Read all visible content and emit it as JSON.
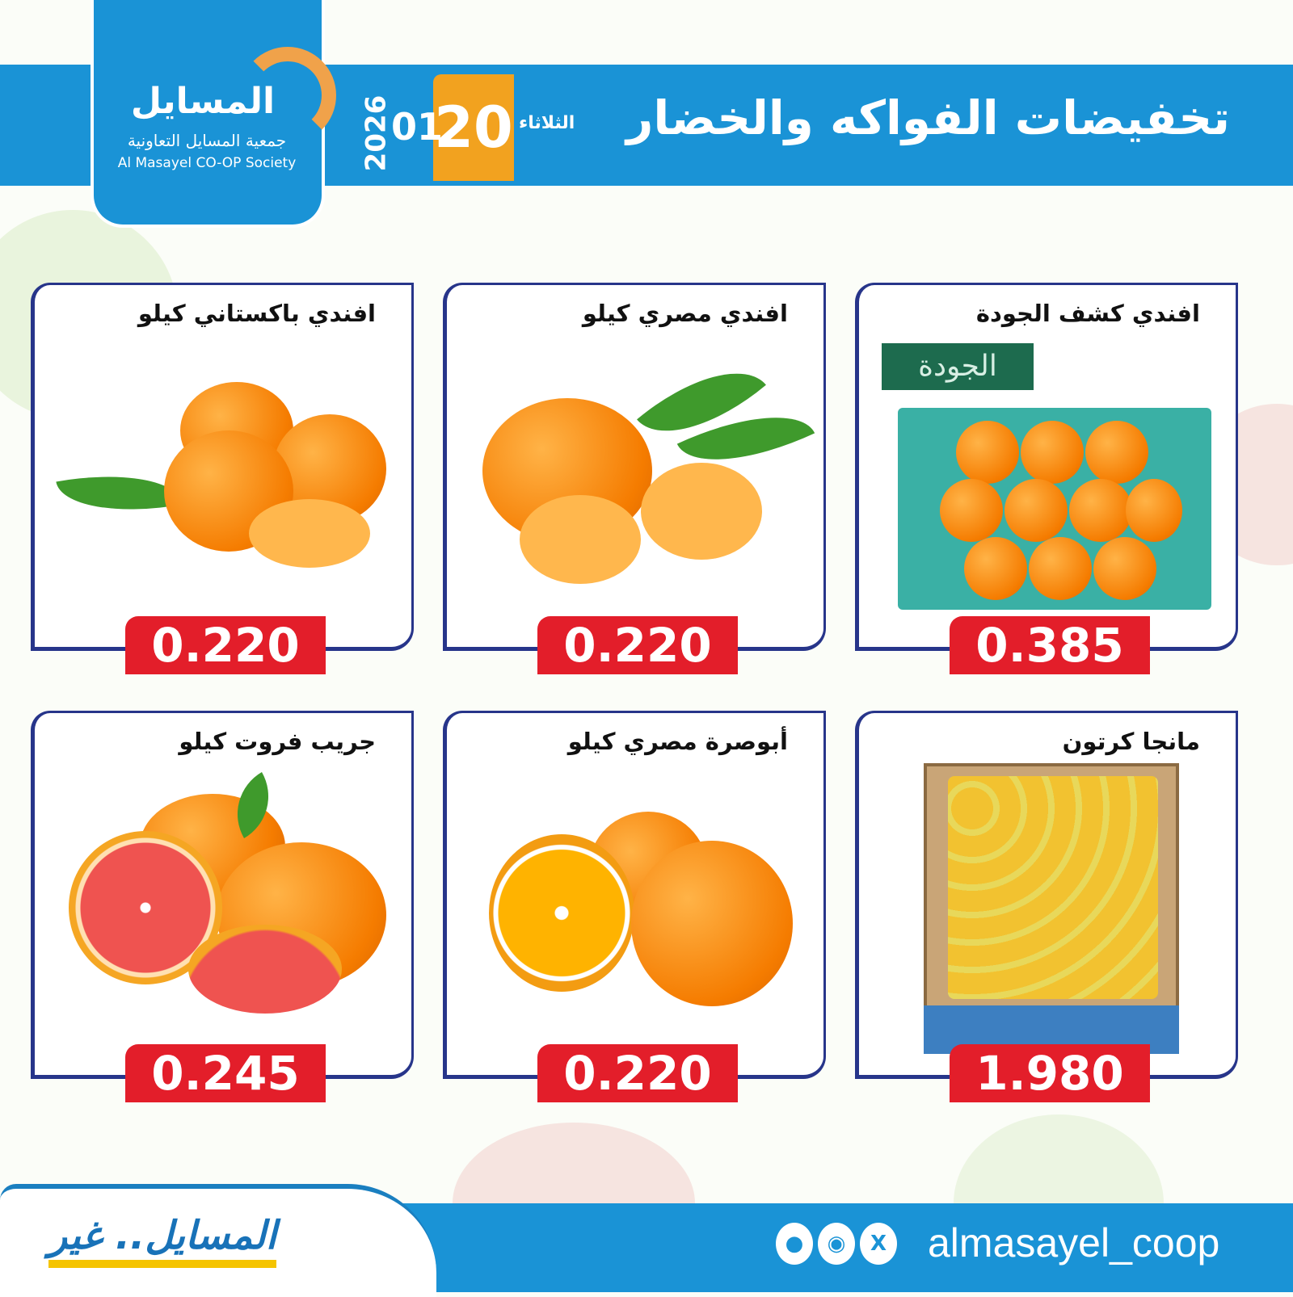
{
  "header": {
    "title": "تخفيضات الفواكه والخضار",
    "day": "الثلاثاء",
    "date_day": "20",
    "date_month": "01",
    "date_year": "2026"
  },
  "logo": {
    "arabic_name": "المسايل",
    "arabic_full": "جمعية المسايل التعاونية",
    "english_name": "Al Masayel CO-OP Society"
  },
  "colors": {
    "primary": "#1a93d6",
    "accent": "#f2a21f",
    "price": "#e31e2a",
    "border": "#27358a"
  },
  "products": [
    {
      "name": "افندي كشف الجودة",
      "price": "0.385",
      "label": "الجودة"
    },
    {
      "name": "افندي مصري كيلو",
      "price": "0.220"
    },
    {
      "name": "افندي باكستاني كيلو",
      "price": "0.220"
    },
    {
      "name": "مانجا كرتون",
      "price": "1.980"
    },
    {
      "name": "أبوصرة مصري كيلو",
      "price": "0.220"
    },
    {
      "name": "جريب فروت كيلو",
      "price": "0.245"
    }
  ],
  "footer": {
    "slogan": "المسايل.. غير",
    "handle": "almasayel_coop",
    "social_icons": [
      "snapchat-icon",
      "instagram-icon",
      "x-icon"
    ]
  }
}
